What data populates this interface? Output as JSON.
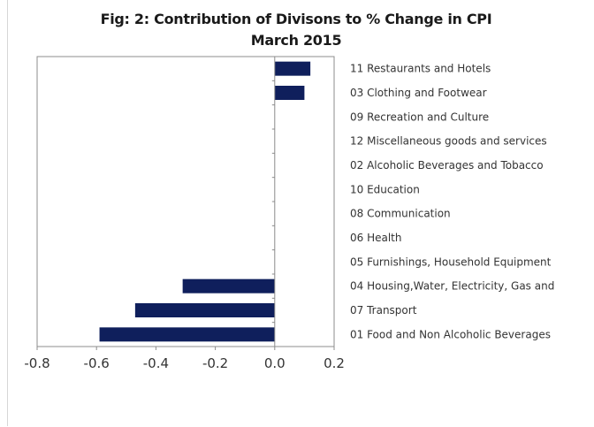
{
  "chart_data": {
    "type": "bar",
    "orientation": "horizontal",
    "title": "Fig: 2: Contribution of Divisons to % Change in CPI",
    "subtitle": "March 2015",
    "categories": [
      "11 Restaurants and Hotels",
      "03 Clothing and Footwear",
      "09 Recreation and Culture",
      "12 Miscellaneous goods and services",
      "02 Alcoholic Beverages and Tobacco",
      "10 Education",
      "08 Communication",
      "06 Health",
      "05 Furnishings, Household Equipment",
      "04 Housing,Water, Electricity, Gas and",
      "07 Transport",
      "01 Food and Non Alcoholic Beverages"
    ],
    "values": [
      0.12,
      0.1,
      0,
      0,
      0,
      0,
      0,
      0,
      0,
      -0.31,
      -0.47,
      -0.59
    ],
    "xlim": [
      -0.8,
      0.2
    ],
    "xticks": [
      -0.8,
      -0.6,
      -0.4,
      -0.2,
      0.0,
      0.2
    ],
    "xtick_labels": [
      "-0.8",
      "-0.6",
      "-0.4",
      "-0.2",
      "0.0",
      "0.2"
    ],
    "legend": "none",
    "grid": false,
    "bar_color": "#0f1f5c"
  }
}
